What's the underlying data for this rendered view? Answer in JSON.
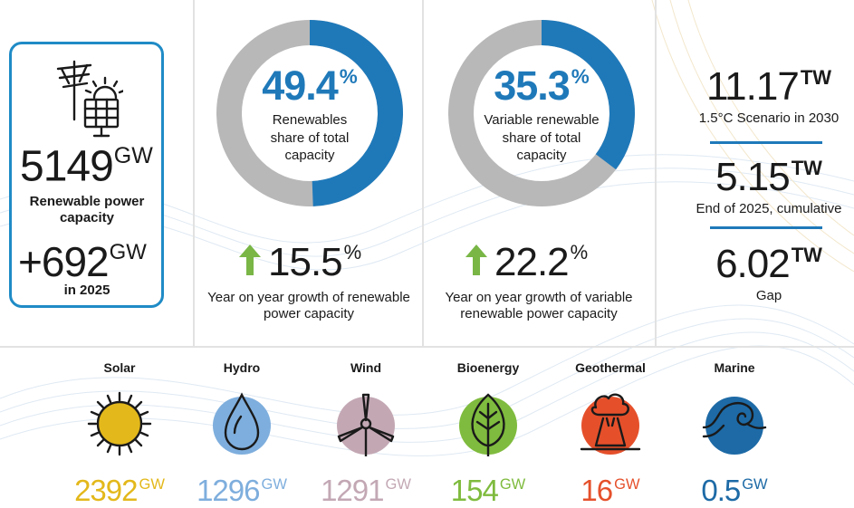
{
  "capacity": {
    "total_value": "5149",
    "total_unit": "GW",
    "total_label": "Renewable power capacity",
    "added_value": "+692",
    "added_unit": "GW",
    "added_label": "in 2025"
  },
  "renewables_share": {
    "value": "49.4",
    "unit": "%",
    "fraction": 0.494,
    "label": "Renewables share of total capacity",
    "growth_value": "15.5",
    "growth_unit": "%",
    "growth_label": "Year on year growth of renewable power capacity"
  },
  "variable_share": {
    "value": "35.3",
    "unit": "%",
    "fraction": 0.353,
    "label": "Variable renewable share of total capacity",
    "growth_value": "22.2",
    "growth_unit": "%",
    "growth_label": "Year on year growth of variable renewable power capacity"
  },
  "targets": [
    {
      "value": "11.17",
      "unit": "TW",
      "label": "1.5°C Scenario in 2030"
    },
    {
      "value": "5.15",
      "unit": "TW",
      "label": "End of 2025, cumulative"
    },
    {
      "value": "6.02",
      "unit": "TW",
      "label": "Gap"
    }
  ],
  "technologies": [
    {
      "name": "Solar",
      "value": "2392",
      "unit": "GW",
      "color": "#e3b81b",
      "icon": "sun-icon"
    },
    {
      "name": "Hydro",
      "value": "1296",
      "unit": "GW",
      "color": "#7eaedd",
      "icon": "water-drop-icon"
    },
    {
      "name": "Wind",
      "value": "1291",
      "unit": "GW",
      "color": "#c3a8b4",
      "icon": "wind-turbine-icon"
    },
    {
      "name": "Bioenergy",
      "value": "154",
      "unit": "GW",
      "color": "#7fbb3e",
      "icon": "leaf-icon"
    },
    {
      "name": "Geothermal",
      "value": "16",
      "unit": "GW",
      "color": "#e5502b",
      "icon": "volcano-icon"
    },
    {
      "name": "Marine",
      "value": "0.5",
      "unit": "GW",
      "color": "#1d6aa6",
      "icon": "wave-icon"
    }
  ],
  "colors": {
    "accent_blue": "#1f79b9",
    "donut_grey": "#b8b8b8",
    "arrow_green": "#79b646",
    "box_border": "#1f8bc6"
  }
}
